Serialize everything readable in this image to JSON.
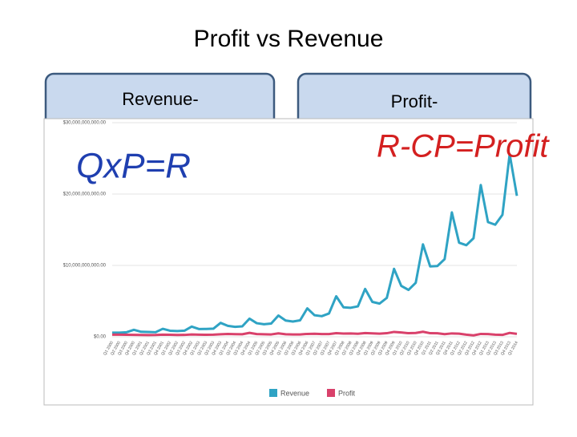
{
  "title": "Profit vs Revenue",
  "boxes": [
    {
      "heading": "Revenue-"
    },
    {
      "heading": "Profit-"
    }
  ],
  "notes": [
    "QxP=R",
    "R-CP=Profit"
  ],
  "chart_data": {
    "type": "line",
    "categories": [
      "Q1 2000",
      "Q2 2000",
      "Q3 2000",
      "Q4 2000",
      "Q1 2001",
      "Q2 2001",
      "Q3 2001",
      "Q4 2001",
      "Q1 2002",
      "Q2 2002",
      "Q3 2002",
      "Q4 2002",
      "Q1 2003",
      "Q2 2003",
      "Q3 2003",
      "Q4 2003",
      "Q1 2004",
      "Q2 2004",
      "Q3 2004",
      "Q4 2004",
      "Q1 2005",
      "Q2 2005",
      "Q3 2005",
      "Q4 2005",
      "Q1 2006",
      "Q2 2006",
      "Q3 2006",
      "Q4 2006",
      "Q1 2007",
      "Q2 2007",
      "Q3 2007",
      "Q4 2007",
      "Q1 2008",
      "Q2 2008",
      "Q3 2008",
      "Q4 2008",
      "Q1 2009",
      "Q2 2009",
      "Q3 2009",
      "Q4 2009",
      "Q1 2010",
      "Q2 2010",
      "Q3 2010",
      "Q4 2010",
      "Q1 2011",
      "Q2 2011",
      "Q3 2011",
      "Q4 2011",
      "Q1 2012",
      "Q2 2012",
      "Q3 2012",
      "Q4 2012",
      "Q1 2013",
      "Q2 2013",
      "Q3 2013",
      "Q4 2013",
      "Q1 2014"
    ],
    "series": [
      {
        "name": "Revenue",
        "color": "#2fa3c4",
        "values": [
          574000000,
          578000000,
          638000000,
          972000000,
          700000000,
          668000000,
          639000000,
          1115000000,
          847000000,
          806000000,
          851000000,
          1429000000,
          1084000000,
          1100000000,
          1134000000,
          1946000000,
          1530000000,
          1387000000,
          1462000000,
          2541000000,
          1902000000,
          1753000000,
          1858000000,
          2977000000,
          2279000000,
          2139000000,
          2307000000,
          3986000000,
          3015000000,
          2886000000,
          3262000000,
          5673000000,
          4135000000,
          4063000000,
          4264000000,
          6704000000,
          4889000000,
          4651000000,
          5449000000,
          9519000000,
          7131000000,
          6566000000,
          7560000000,
          12948000000,
          9857000000,
          9913000000,
          10876000000,
          17431000000,
          13185000000,
          12834000000,
          13806000000,
          21268000000,
          16070000000,
          15704000000,
          17092000000,
          25587000000,
          19741000000
        ]
      },
      {
        "name": "Profit",
        "color": "#d9416b",
        "values": [
          300000000,
          290000000,
          280000000,
          260000000,
          250000000,
          240000000,
          250000000,
          300000000,
          280000000,
          250000000,
          260000000,
          320000000,
          300000000,
          280000000,
          290000000,
          350000000,
          400000000,
          370000000,
          350000000,
          550000000,
          380000000,
          350000000,
          330000000,
          480000000,
          350000000,
          320000000,
          320000000,
          400000000,
          420000000,
          380000000,
          380000000,
          500000000,
          450000000,
          460000000,
          420000000,
          520000000,
          480000000,
          440000000,
          500000000,
          680000000,
          600000000,
          500000000,
          530000000,
          700000000,
          500000000,
          490000000,
          360000000,
          470000000,
          430000000,
          300000000,
          200000000,
          400000000,
          380000000,
          300000000,
          260000000,
          540000000,
          410000000
        ]
      }
    ],
    "ylim": [
      0,
      30000000000
    ],
    "yticks": [
      {
        "value": 0,
        "label": "$0.00"
      },
      {
        "value": 10000000000,
        "label": "$10,000,000,000.00"
      },
      {
        "value": 20000000000,
        "label": "$20,000,000,000.00"
      },
      {
        "value": 30000000000,
        "label": "$30,000,000,000.00"
      }
    ],
    "grid": true
  }
}
